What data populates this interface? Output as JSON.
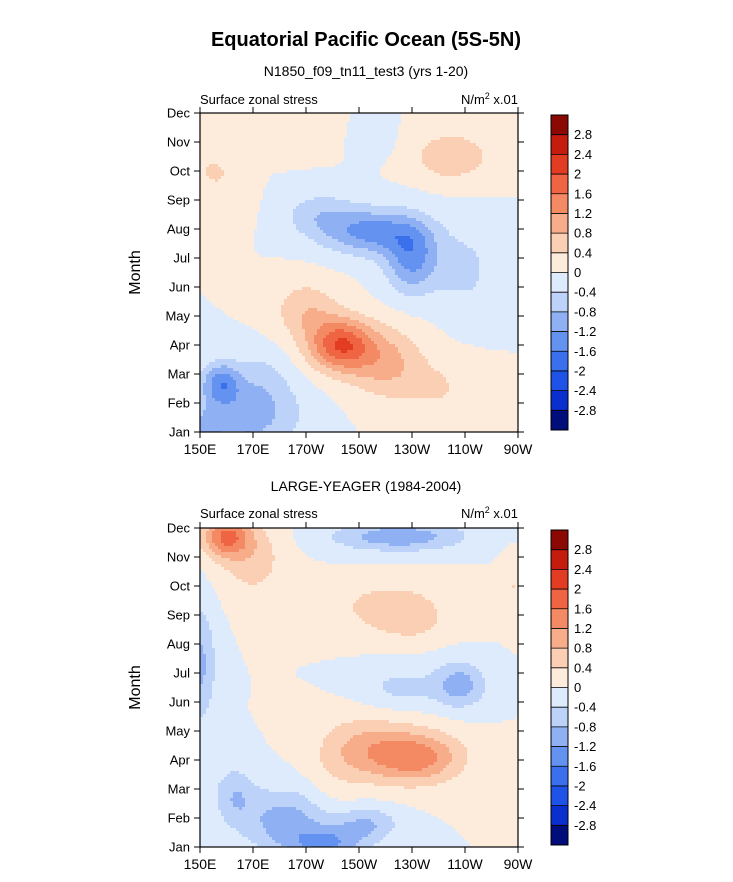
{
  "figure": {
    "title": "Equatorial Pacific Ocean (5S-5N)"
  },
  "colors": {
    "scale": [
      "#000d7a",
      "#0a2fcf",
      "#1f52e6",
      "#3a70ec",
      "#6392f0",
      "#8fb1f3",
      "#bdd2f8",
      "#deebfc",
      "#fdebdc",
      "#fbcfb3",
      "#f8ad8a",
      "#f48a63",
      "#ef6442",
      "#e23c22",
      "#c41d0d",
      "#8a0a03"
    ]
  },
  "chart_data": [
    {
      "type": "heatmap",
      "title": "N1850_f09_tn11_test3 (yrs 1-20)",
      "left_label": "Surface zonal stress",
      "units_label": "N/m",
      "units_sup": "2",
      "units_scale": " x.01",
      "ylabel": "Month",
      "xlabel": "",
      "x_ticks": [
        "150E",
        "170E",
        "170W",
        "150W",
        "130W",
        "110W",
        "90W"
      ],
      "x_range": [
        150,
        270
      ],
      "y_ticks": [
        "Jan",
        "Feb",
        "Mar",
        "Apr",
        "May",
        "Jun",
        "Jul",
        "Aug",
        "Sep",
        "Oct",
        "Nov",
        "Dec"
      ],
      "colorbar_labels": [
        "2.8",
        "2.4",
        "2",
        "1.6",
        "1.2",
        "0.8",
        "0.4",
        "0",
        "-0.4",
        "-0.8",
        "-1.2",
        "-1.6",
        "-2",
        "-2.4",
        "-2.8"
      ],
      "contour_levels": [
        -2.8,
        -2.4,
        -2,
        -1.6,
        -1.2,
        -0.8,
        -0.4,
        0,
        0.4,
        0.8,
        1.2,
        1.6,
        2,
        2.4,
        2.8
      ],
      "features": [
        {
          "lon": 152,
          "month": 1,
          "value": -0.5,
          "width": 6,
          "height": 0.8
        },
        {
          "lon": 168,
          "month": 1.6,
          "value": -1.0,
          "width": 20,
          "height": 1.3
        },
        {
          "lon": 158,
          "month": 2.7,
          "value": -1.2,
          "width": 7,
          "height": 0.7
        },
        {
          "lon": 174,
          "month": 3.0,
          "value": -0.3,
          "width": 10,
          "height": 1.0
        },
        {
          "lon": 203,
          "month": 4.0,
          "value": 1.9,
          "width": 12,
          "height": 0.9
        },
        {
          "lon": 220,
          "month": 3.4,
          "value": 0.9,
          "width": 14,
          "height": 1.2
        },
        {
          "lon": 190,
          "month": 5.2,
          "value": 0.7,
          "width": 12,
          "height": 1.0
        },
        {
          "lon": 240,
          "month": 2.5,
          "value": 0.4,
          "width": 14,
          "height": 1.0
        },
        {
          "lon": 215,
          "month": 7.9,
          "value": -1.3,
          "width": 18,
          "height": 0.8
        },
        {
          "lon": 230,
          "month": 7.0,
          "value": -1.3,
          "width": 10,
          "height": 1.2
        },
        {
          "lon": 195,
          "month": 8.5,
          "value": -0.6,
          "width": 14,
          "height": 0.8
        },
        {
          "lon": 250,
          "month": 6.6,
          "value": -0.5,
          "width": 12,
          "height": 1.5
        },
        {
          "lon": 160,
          "month": 9.0,
          "value": 0.3,
          "width": 9,
          "height": 1.0
        },
        {
          "lon": 155,
          "month": 10.0,
          "value": 0.5,
          "width": 5,
          "height": 0.4
        },
        {
          "lon": 245,
          "month": 10.5,
          "value": 0.8,
          "width": 14,
          "height": 0.8
        },
        {
          "lon": 215,
          "month": 11.1,
          "value": -0.3,
          "width": 7,
          "height": 0.6
        },
        {
          "lon": 185,
          "month": 11.3,
          "value": 0.3,
          "width": 14,
          "height": 0.7
        }
      ]
    },
    {
      "type": "heatmap",
      "title": "LARGE-YEAGER (1984-2004)",
      "left_label": "Surface zonal stress",
      "units_label": "N/m",
      "units_sup": "2",
      "units_scale": " x.01",
      "ylabel": "Month",
      "xlabel": "",
      "x_ticks": [
        "150E",
        "170E",
        "170W",
        "150W",
        "130W",
        "110W",
        "90W"
      ],
      "x_range": [
        150,
        270
      ],
      "y_ticks": [
        "Jan",
        "Feb",
        "Mar",
        "Apr",
        "May",
        "Jun",
        "Jul",
        "Aug",
        "Sep",
        "Oct",
        "Nov",
        "Dec"
      ],
      "colorbar_labels": [
        "2.8",
        "2.4",
        "2",
        "1.6",
        "1.2",
        "0.8",
        "0.4",
        "0",
        "-0.4",
        "-0.8",
        "-1.2",
        "-1.6",
        "-2",
        "-2.4",
        "-2.8"
      ],
      "contour_levels": [
        -2.8,
        -2.4,
        -2,
        -1.6,
        -1.2,
        -0.8,
        -0.4,
        0,
        0.4,
        0.8,
        1.2,
        1.6,
        2,
        2.4,
        2.8
      ],
      "features": [
        {
          "lon": 160,
          "month": 11.7,
          "value": 1.6,
          "width": 9,
          "height": 0.7
        },
        {
          "lon": 170,
          "month": 10.9,
          "value": 0.6,
          "width": 12,
          "height": 1.3
        },
        {
          "lon": 225,
          "month": 11.7,
          "value": -1.1,
          "width": 25,
          "height": 0.5
        },
        {
          "lon": 222,
          "month": 9.3,
          "value": 0.6,
          "width": 22,
          "height": 0.9
        },
        {
          "lon": 230,
          "month": 8.6,
          "value": 0.3,
          "width": 14,
          "height": 0.6
        },
        {
          "lon": 150,
          "month": 7.3,
          "value": -0.9,
          "width": 6,
          "height": 2.0
        },
        {
          "lon": 248,
          "month": 6.6,
          "value": -1.0,
          "width": 10,
          "height": 0.8
        },
        {
          "lon": 225,
          "month": 6.5,
          "value": -0.5,
          "width": 15,
          "height": 0.7
        },
        {
          "lon": 232,
          "month": 4.1,
          "value": 1.4,
          "width": 17,
          "height": 0.9
        },
        {
          "lon": 212,
          "month": 4.4,
          "value": 0.8,
          "width": 16,
          "height": 1.1
        },
        {
          "lon": 200,
          "month": 3.5,
          "value": 0.2,
          "width": 10,
          "height": 1.4
        },
        {
          "lon": 182,
          "month": 1.9,
          "value": -1.0,
          "width": 16,
          "height": 1.1
        },
        {
          "lon": 198,
          "month": 1.1,
          "value": -1.1,
          "width": 14,
          "height": 0.6
        },
        {
          "lon": 213,
          "month": 1.8,
          "value": -0.8,
          "width": 12,
          "height": 0.6
        },
        {
          "lon": 163,
          "month": 2.8,
          "value": -0.7,
          "width": 8,
          "height": 1.0
        },
        {
          "lon": 268,
          "month": 10.0,
          "value": 0.4,
          "width": 4,
          "height": 1.0
        }
      ]
    }
  ]
}
